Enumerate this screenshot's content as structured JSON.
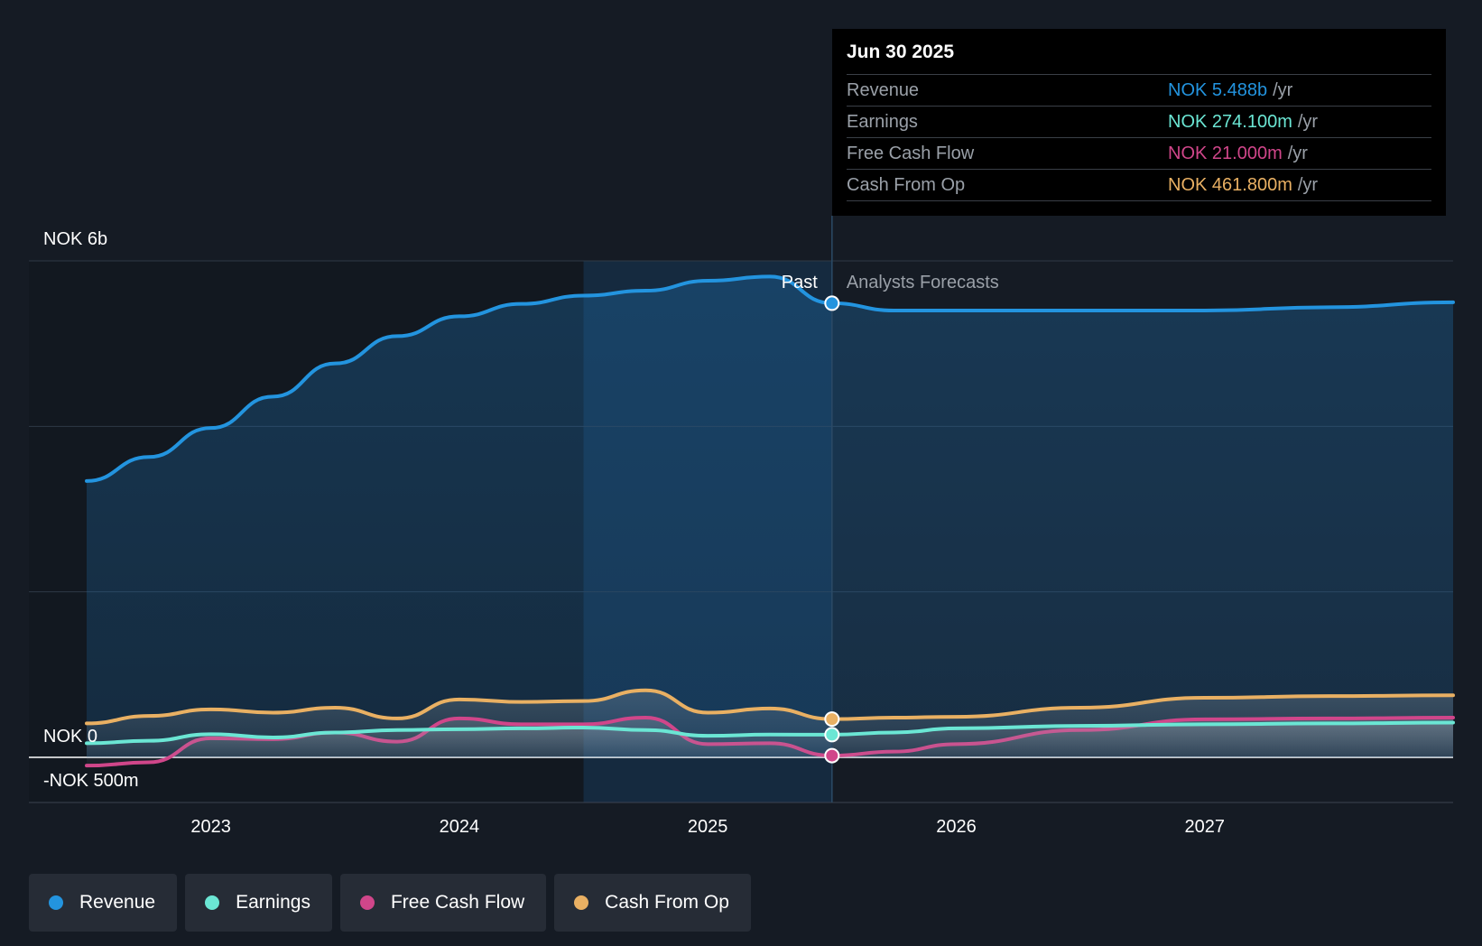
{
  "colors": {
    "revenue": "#2394df",
    "earnings": "#6be6d4",
    "fcf": "#d0468a",
    "cfo": "#e9b063",
    "background": "#151b24"
  },
  "tooltip": {
    "date": "Jun 30 2025",
    "unit": "/yr",
    "rows": [
      {
        "name": "Revenue",
        "value": "NOK 5.488b",
        "color_key": "revenue"
      },
      {
        "name": "Earnings",
        "value": "NOK 274.100m",
        "color_key": "earnings"
      },
      {
        "name": "Free Cash Flow",
        "value": "NOK 21.000m",
        "color_key": "fcf"
      },
      {
        "name": "Cash From Op",
        "value": "NOK 461.800m",
        "color_key": "cfo"
      }
    ]
  },
  "labels": {
    "past": "Past",
    "forecast": "Analysts Forecasts"
  },
  "legend": [
    {
      "label": "Revenue",
      "color_key": "revenue"
    },
    {
      "label": "Earnings",
      "color_key": "earnings"
    },
    {
      "label": "Free Cash Flow",
      "color_key": "fcf"
    },
    {
      "label": "Cash From Op",
      "color_key": "cfo"
    }
  ],
  "chart_data": {
    "type": "area",
    "title": "",
    "xlabel": "",
    "ylabel": "",
    "unit": "NOK",
    "x_range": [
      2022.5,
      2028.0
    ],
    "ylim": [
      -500,
      6000
    ],
    "y_axis_labels": [
      {
        "value": 6000,
        "label": "NOK 6b"
      },
      {
        "value": 0,
        "label": "NOK 0"
      },
      {
        "value": -500,
        "label": "-NOK 500m"
      }
    ],
    "gridlines": [
      6000,
      4000,
      2000,
      0
    ],
    "x_ticks": [
      {
        "value": 2023.0,
        "label": "2023"
      },
      {
        "value": 2024.0,
        "label": "2024"
      },
      {
        "value": 2025.0,
        "label": "2025"
      },
      {
        "value": 2026.0,
        "label": "2026"
      },
      {
        "value": 2027.0,
        "label": "2027"
      }
    ],
    "divider_x": 2025.5,
    "highlight_start_x": 2024.5,
    "highlight_x": 2025.5,
    "series": [
      {
        "name": "Revenue",
        "color_key": "revenue",
        "points": [
          [
            2022.5,
            3340
          ],
          [
            2022.75,
            3630
          ],
          [
            2023.0,
            3980
          ],
          [
            2023.25,
            4360
          ],
          [
            2023.5,
            4760
          ],
          [
            2023.75,
            5090
          ],
          [
            2024.0,
            5330
          ],
          [
            2024.25,
            5480
          ],
          [
            2024.5,
            5580
          ],
          [
            2024.75,
            5640
          ],
          [
            2025.0,
            5760
          ],
          [
            2025.25,
            5810
          ],
          [
            2025.5,
            5488
          ],
          [
            2025.5,
            5488
          ],
          [
            2025.75,
            5400
          ],
          [
            2026.0,
            5400
          ],
          [
            2026.5,
            5400
          ],
          [
            2027.0,
            5400
          ],
          [
            2027.5,
            5440
          ],
          [
            2028.0,
            5500
          ]
        ]
      },
      {
        "name": "Earnings",
        "color_key": "earnings",
        "points": [
          [
            2022.5,
            170
          ],
          [
            2022.75,
            200
          ],
          [
            2023.0,
            280
          ],
          [
            2023.25,
            240
          ],
          [
            2023.5,
            300
          ],
          [
            2023.75,
            330
          ],
          [
            2024.0,
            340
          ],
          [
            2024.25,
            350
          ],
          [
            2024.5,
            360
          ],
          [
            2024.75,
            330
          ],
          [
            2025.0,
            260
          ],
          [
            2025.25,
            275
          ],
          [
            2025.5,
            274
          ],
          [
            2025.75,
            300
          ],
          [
            2026.0,
            350
          ],
          [
            2026.5,
            380
          ],
          [
            2027.0,
            400
          ],
          [
            2027.5,
            410
          ],
          [
            2028.0,
            420
          ]
        ]
      },
      {
        "name": "Free Cash Flow",
        "color_key": "fcf",
        "points": [
          [
            2022.5,
            -100
          ],
          [
            2022.75,
            -60
          ],
          [
            2023.0,
            230
          ],
          [
            2023.25,
            220
          ],
          [
            2023.5,
            300
          ],
          [
            2023.75,
            190
          ],
          [
            2024.0,
            470
          ],
          [
            2024.25,
            400
          ],
          [
            2024.5,
            400
          ],
          [
            2024.75,
            480
          ],
          [
            2025.0,
            160
          ],
          [
            2025.25,
            170
          ],
          [
            2025.5,
            21
          ],
          [
            2025.75,
            70
          ],
          [
            2026.0,
            160
          ],
          [
            2026.5,
            330
          ],
          [
            2027.0,
            460
          ],
          [
            2027.5,
            470
          ],
          [
            2028.0,
            480
          ]
        ]
      },
      {
        "name": "Cash From Op",
        "color_key": "cfo",
        "points": [
          [
            2022.5,
            410
          ],
          [
            2022.75,
            500
          ],
          [
            2023.0,
            580
          ],
          [
            2023.25,
            540
          ],
          [
            2023.5,
            600
          ],
          [
            2023.75,
            470
          ],
          [
            2024.0,
            700
          ],
          [
            2024.25,
            670
          ],
          [
            2024.5,
            680
          ],
          [
            2024.75,
            810
          ],
          [
            2025.0,
            540
          ],
          [
            2025.25,
            590
          ],
          [
            2025.5,
            462
          ],
          [
            2025.75,
            480
          ],
          [
            2026.0,
            490
          ],
          [
            2026.5,
            600
          ],
          [
            2027.0,
            720
          ],
          [
            2027.5,
            740
          ],
          [
            2028.0,
            750
          ]
        ]
      }
    ]
  }
}
